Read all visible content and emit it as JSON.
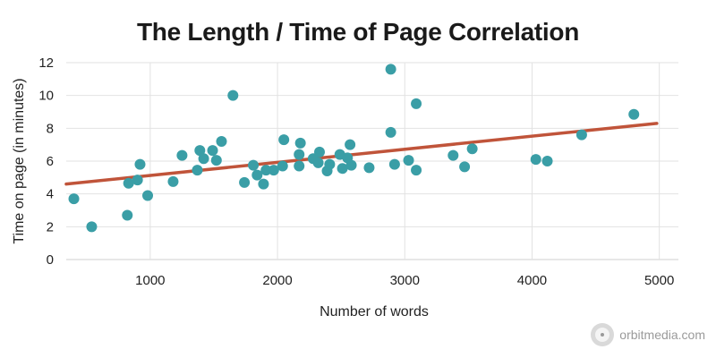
{
  "chart_data": {
    "type": "scatter",
    "title": "The Length / Time of Page Correlation",
    "xlabel": "Number of words",
    "ylabel": "Time on page (in minutes)",
    "xlim": [
      340,
      5150
    ],
    "ylim": [
      0,
      12
    ],
    "xticks": [
      1000,
      2000,
      3000,
      4000,
      5000
    ],
    "yticks": [
      0,
      2,
      4,
      6,
      8,
      10,
      12
    ],
    "grid": true,
    "legend": "none",
    "colors": {
      "points": "#3a9ea6",
      "trendline": "#c0543a"
    },
    "points": [
      {
        "x": 400,
        "y": 3.7
      },
      {
        "x": 540,
        "y": 2.0
      },
      {
        "x": 820,
        "y": 2.7
      },
      {
        "x": 830,
        "y": 4.65
      },
      {
        "x": 900,
        "y": 4.85
      },
      {
        "x": 920,
        "y": 5.8
      },
      {
        "x": 980,
        "y": 3.9
      },
      {
        "x": 1180,
        "y": 4.75
      },
      {
        "x": 1250,
        "y": 6.35
      },
      {
        "x": 1370,
        "y": 5.45
      },
      {
        "x": 1390,
        "y": 6.65
      },
      {
        "x": 1420,
        "y": 6.15
      },
      {
        "x": 1490,
        "y": 6.65
      },
      {
        "x": 1520,
        "y": 6.05
      },
      {
        "x": 1560,
        "y": 7.2
      },
      {
        "x": 1650,
        "y": 10.0
      },
      {
        "x": 1740,
        "y": 4.7
      },
      {
        "x": 1810,
        "y": 5.75
      },
      {
        "x": 1840,
        "y": 5.15
      },
      {
        "x": 1890,
        "y": 4.6
      },
      {
        "x": 1910,
        "y": 5.45
      },
      {
        "x": 1970,
        "y": 5.45
      },
      {
        "x": 2040,
        "y": 5.7
      },
      {
        "x": 2050,
        "y": 7.3
      },
      {
        "x": 2170,
        "y": 5.7
      },
      {
        "x": 2170,
        "y": 6.4
      },
      {
        "x": 2180,
        "y": 7.1
      },
      {
        "x": 2280,
        "y": 6.15
      },
      {
        "x": 2320,
        "y": 5.9
      },
      {
        "x": 2330,
        "y": 6.55
      },
      {
        "x": 2390,
        "y": 5.4
      },
      {
        "x": 2410,
        "y": 5.8
      },
      {
        "x": 2490,
        "y": 6.4
      },
      {
        "x": 2510,
        "y": 5.55
      },
      {
        "x": 2550,
        "y": 6.2
      },
      {
        "x": 2570,
        "y": 7.0
      },
      {
        "x": 2580,
        "y": 5.75
      },
      {
        "x": 2720,
        "y": 5.6
      },
      {
        "x": 2890,
        "y": 11.6
      },
      {
        "x": 2890,
        "y": 7.75
      },
      {
        "x": 2920,
        "y": 5.8
      },
      {
        "x": 3030,
        "y": 6.05
      },
      {
        "x": 3090,
        "y": 9.5
      },
      {
        "x": 3090,
        "y": 5.45
      },
      {
        "x": 3380,
        "y": 6.35
      },
      {
        "x": 3470,
        "y": 5.65
      },
      {
        "x": 3530,
        "y": 6.75
      },
      {
        "x": 4030,
        "y": 6.1
      },
      {
        "x": 4120,
        "y": 6.0
      },
      {
        "x": 4390,
        "y": 7.6
      },
      {
        "x": 4800,
        "y": 8.85
      }
    ],
    "trendline": [
      {
        "x": 340,
        "y": 4.6
      },
      {
        "x": 4980,
        "y": 8.3
      }
    ]
  },
  "branding": {
    "text": "orbitmedia.com",
    "logo_icon": "orbit-circle-icon"
  }
}
